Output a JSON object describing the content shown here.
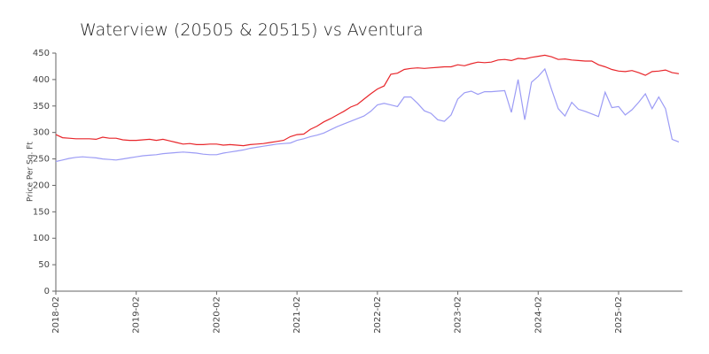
{
  "chart_data": {
    "type": "line",
    "title": "Waterview (20505 & 20515) vs Aventura",
    "y_label": "Price Per Sq. Ft",
    "categories": [
      "2018-02",
      null,
      null,
      null,
      null,
      null,
      null,
      null,
      null,
      null,
      null,
      null,
      "2019-02",
      null,
      null,
      null,
      null,
      null,
      null,
      null,
      null,
      null,
      null,
      null,
      "2020-02",
      null,
      null,
      null,
      null,
      null,
      null,
      null,
      null,
      null,
      null,
      null,
      "2021-02",
      null,
      null,
      null,
      null,
      null,
      null,
      null,
      null,
      null,
      null,
      null,
      "2022-02",
      null,
      null,
      null,
      null,
      null,
      null,
      null,
      null,
      null,
      null,
      null,
      "2023-02",
      null,
      null,
      null,
      null,
      null,
      null,
      null,
      null,
      null,
      null,
      null,
      "2024-02",
      null,
      null,
      null,
      null,
      null,
      null,
      null,
      null,
      null,
      null,
      null,
      "2025-02",
      null,
      null,
      null,
      null,
      null,
      null,
      null,
      null,
      null
    ],
    "series": [
      {
        "color": "#e8262b",
        "values": [
          296,
          290,
          289,
          288,
          288,
          288,
          287,
          291,
          289,
          289,
          286,
          285,
          285,
          286,
          287,
          285,
          287,
          284,
          281,
          278,
          279,
          277,
          277,
          278,
          278,
          276,
          277,
          276,
          275,
          277,
          278,
          279,
          281,
          283,
          285,
          292,
          296,
          297,
          306,
          312,
          320,
          326,
          333,
          340,
          348,
          353,
          363,
          373,
          382,
          388,
          410,
          412,
          419,
          421,
          422,
          421,
          422,
          423,
          424,
          424,
          428,
          426,
          430,
          433,
          432,
          433,
          437,
          438,
          436,
          440,
          439,
          442,
          444,
          446,
          443,
          438,
          439,
          437,
          436,
          435,
          435,
          428,
          424,
          419,
          416,
          415,
          417,
          413,
          408,
          415,
          416,
          418,
          413,
          411
        ]
      },
      {
        "color": "#9c9cf5",
        "values": [
          245,
          248,
          251,
          253,
          254,
          253,
          252,
          250,
          249,
          248,
          250,
          252,
          254,
          256,
          257,
          258,
          260,
          261,
          262,
          263,
          262,
          261,
          259,
          258,
          258,
          261,
          263,
          265,
          267,
          270,
          272,
          274,
          276,
          278,
          279,
          280,
          285,
          288,
          292,
          295,
          299,
          305,
          311,
          316,
          321,
          326,
          331,
          340,
          352,
          355,
          352,
          349,
          367,
          367,
          355,
          341,
          336,
          324,
          321,
          333,
          363,
          375,
          378,
          372,
          377,
          377,
          378,
          379,
          338,
          400,
          324,
          395,
          406,
          420,
          381,
          345,
          331,
          357,
          344,
          340,
          335,
          330,
          376,
          347,
          349,
          333,
          343,
          357,
          373,
          345,
          367,
          345,
          287,
          282
        ]
      }
    ],
    "ylim": [
      0,
      450
    ],
    "yticks": [
      0,
      50,
      100,
      150,
      200,
      250,
      300,
      350,
      400,
      450
    ]
  }
}
